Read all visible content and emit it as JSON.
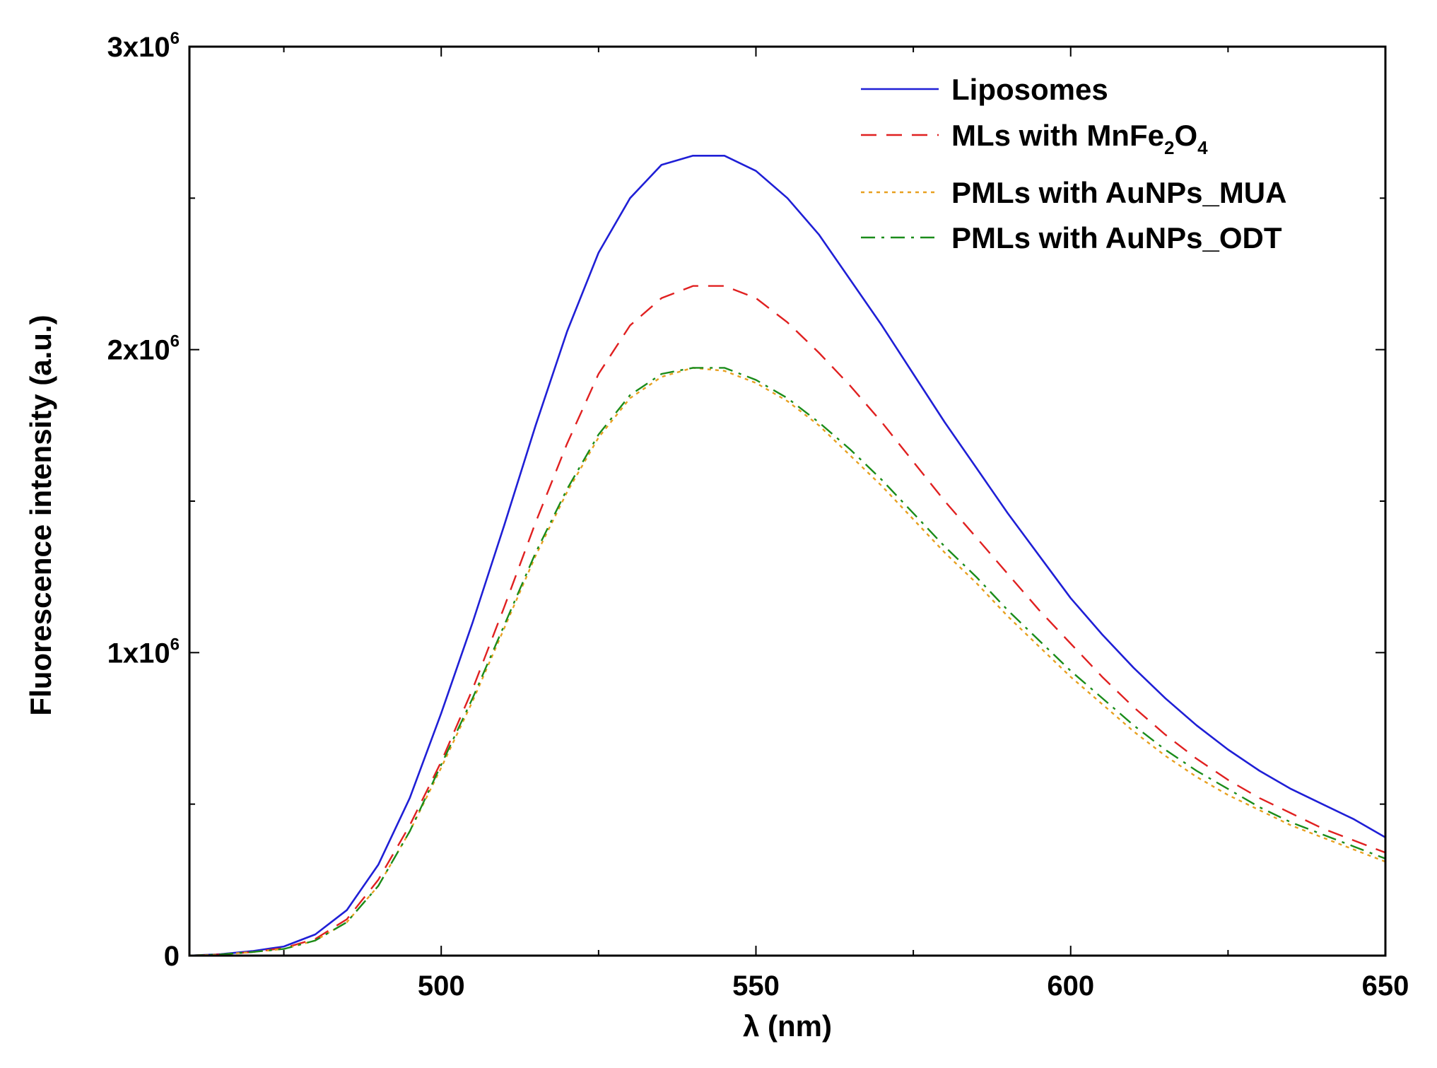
{
  "chart_data": {
    "type": "line",
    "xlabel": "λ (nm)",
    "ylabel": "Fluorescence intensity (a.u.)",
    "xlim": [
      460,
      650
    ],
    "ylim": [
      0,
      3000000
    ],
    "x_ticks": [
      {
        "value": 500,
        "label": "500"
      },
      {
        "value": 550,
        "label": "550"
      },
      {
        "value": 600,
        "label": "600"
      },
      {
        "value": 650,
        "label": "650"
      }
    ],
    "x_minor_ticks": [
      475,
      525,
      575,
      625
    ],
    "y_ticks": [
      {
        "value": 0,
        "base": "0",
        "exp": ""
      },
      {
        "value": 1000000,
        "base": "1x10",
        "exp": "6"
      },
      {
        "value": 2000000,
        "base": "2x10",
        "exp": "6"
      },
      {
        "value": 3000000,
        "base": "3x10",
        "exp": "6"
      }
    ],
    "y_minor_ticks": [
      500000,
      1500000,
      2500000
    ],
    "grid": false,
    "legend_position": "top-right",
    "x": [
      460,
      465,
      470,
      475,
      480,
      485,
      490,
      495,
      500,
      505,
      510,
      515,
      520,
      525,
      530,
      535,
      540,
      545,
      550,
      555,
      560,
      565,
      570,
      575,
      580,
      585,
      590,
      595,
      600,
      605,
      610,
      615,
      620,
      625,
      630,
      635,
      640,
      645,
      650
    ],
    "series": [
      {
        "name": "Liposomes",
        "color": "#1f1fd6",
        "dash": "solid",
        "values": [
          0,
          5000,
          15000,
          30000,
          70000,
          150000,
          300000,
          520000,
          800000,
          1100000,
          1420000,
          1750000,
          2060000,
          2320000,
          2500000,
          2610000,
          2640000,
          2640000,
          2590000,
          2500000,
          2380000,
          2230000,
          2080000,
          1920000,
          1760000,
          1610000,
          1460000,
          1320000,
          1180000,
          1060000,
          950000,
          850000,
          760000,
          680000,
          610000,
          550000,
          500000,
          450000,
          390000
        ]
      },
      {
        "name": "MLs with MnFe2O4",
        "legend_base": "MLs with MnFe",
        "legend_sub1": "2",
        "legend_mid": "O",
        "legend_sub2": "4",
        "color": "#e02020",
        "dash": "dashed",
        "values": [
          0,
          4000,
          12000,
          25000,
          55000,
          120000,
          250000,
          430000,
          640000,
          880000,
          1150000,
          1430000,
          1690000,
          1920000,
          2080000,
          2170000,
          2210000,
          2210000,
          2170000,
          2090000,
          1990000,
          1880000,
          1760000,
          1630000,
          1500000,
          1380000,
          1260000,
          1140000,
          1030000,
          920000,
          820000,
          730000,
          650000,
          580000,
          520000,
          470000,
          420000,
          380000,
          340000
        ]
      },
      {
        "name": "PMLs with AuNPs_MUA",
        "color": "#e8a020",
        "dash": "dotted",
        "values": [
          0,
          4000,
          12000,
          22000,
          50000,
          110000,
          230000,
          410000,
          620000,
          840000,
          1080000,
          1320000,
          1530000,
          1710000,
          1840000,
          1910000,
          1940000,
          1930000,
          1890000,
          1830000,
          1750000,
          1650000,
          1550000,
          1440000,
          1330000,
          1230000,
          1120000,
          1020000,
          920000,
          830000,
          740000,
          660000,
          590000,
          530000,
          480000,
          430000,
          390000,
          350000,
          310000
        ]
      },
      {
        "name": "PMLs with AuNPs_ODT",
        "color": "#1a8c1a",
        "dash": "dashdot",
        "values": [
          0,
          4000,
          12000,
          22000,
          50000,
          110000,
          230000,
          410000,
          630000,
          850000,
          1090000,
          1330000,
          1540000,
          1720000,
          1850000,
          1920000,
          1940000,
          1940000,
          1900000,
          1840000,
          1760000,
          1670000,
          1570000,
          1460000,
          1350000,
          1250000,
          1140000,
          1040000,
          940000,
          850000,
          760000,
          680000,
          610000,
          550000,
          490000,
          440000,
          400000,
          360000,
          320000
        ]
      }
    ]
  }
}
